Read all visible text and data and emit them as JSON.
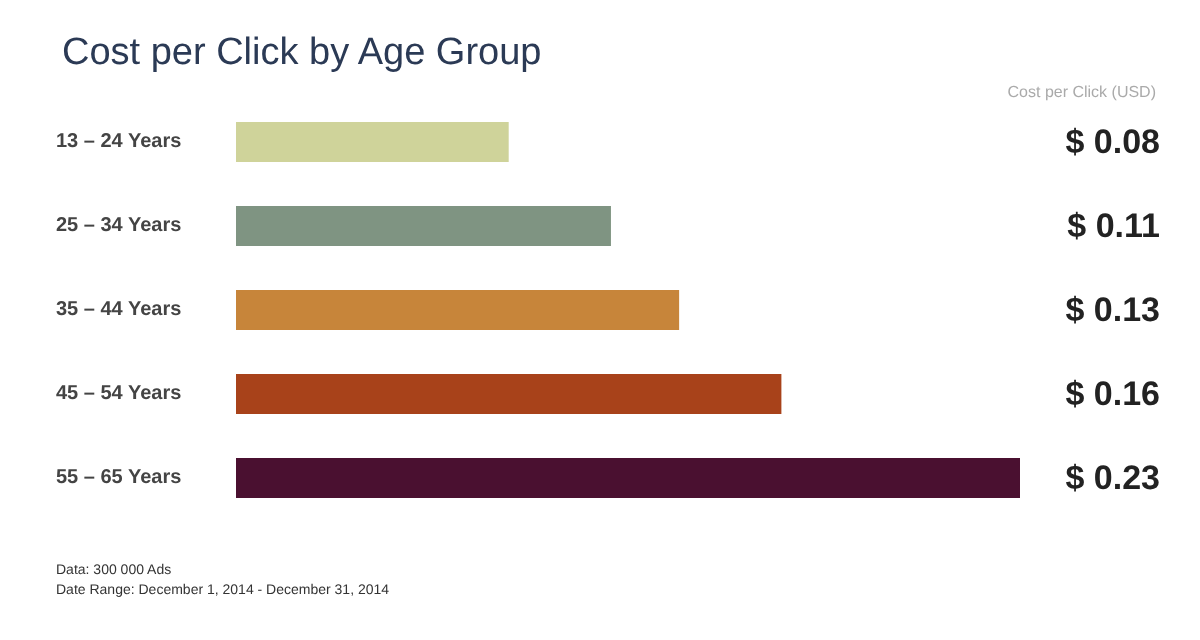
{
  "chart_data": {
    "type": "bar",
    "orientation": "horizontal",
    "title": "Cost per Click by Age Group",
    "xlabel": "Cost per Click (USD)",
    "categories": [
      "13 – 24 Years",
      "25 – 34 Years",
      "35 – 44 Years",
      "45 – 54 Years",
      "55 – 65 Years"
    ],
    "values": [
      0.08,
      0.11,
      0.13,
      0.16,
      0.23
    ],
    "colors": [
      "#cfd39a",
      "#7f9482",
      "#c7853a",
      "#a8421a",
      "#4a1030"
    ],
    "value_labels": [
      "$ 0.08",
      "$ 0.11",
      "$ 0.13",
      "$ 0.16",
      "$ 0.23"
    ],
    "annotations": [
      "Data: 300 000 Ads",
      "Date Range: December 1, 2014 - December 31, 2014"
    ]
  }
}
